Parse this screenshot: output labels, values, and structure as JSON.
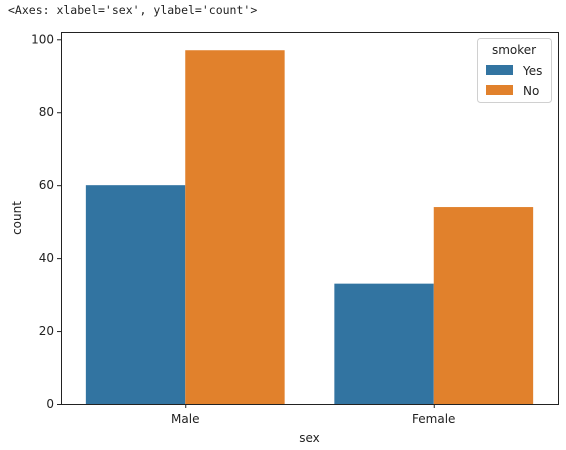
{
  "output_repr": "<Axes: xlabel='sex', ylabel='count'>",
  "chart_data": {
    "type": "bar",
    "title": "",
    "xlabel": "sex",
    "ylabel": "count",
    "categories": [
      "Male",
      "Female"
    ],
    "ylim": [
      0,
      102
    ],
    "yticks": [
      0,
      20,
      40,
      60,
      80,
      100
    ],
    "grid": false,
    "legend": {
      "title": "smoker",
      "placement": "top-right"
    },
    "series": [
      {
        "name": "Yes",
        "color": "#3274a1",
        "values": [
          60,
          33
        ]
      },
      {
        "name": "No",
        "color": "#e1812c",
        "values": [
          97,
          54
        ]
      }
    ]
  }
}
